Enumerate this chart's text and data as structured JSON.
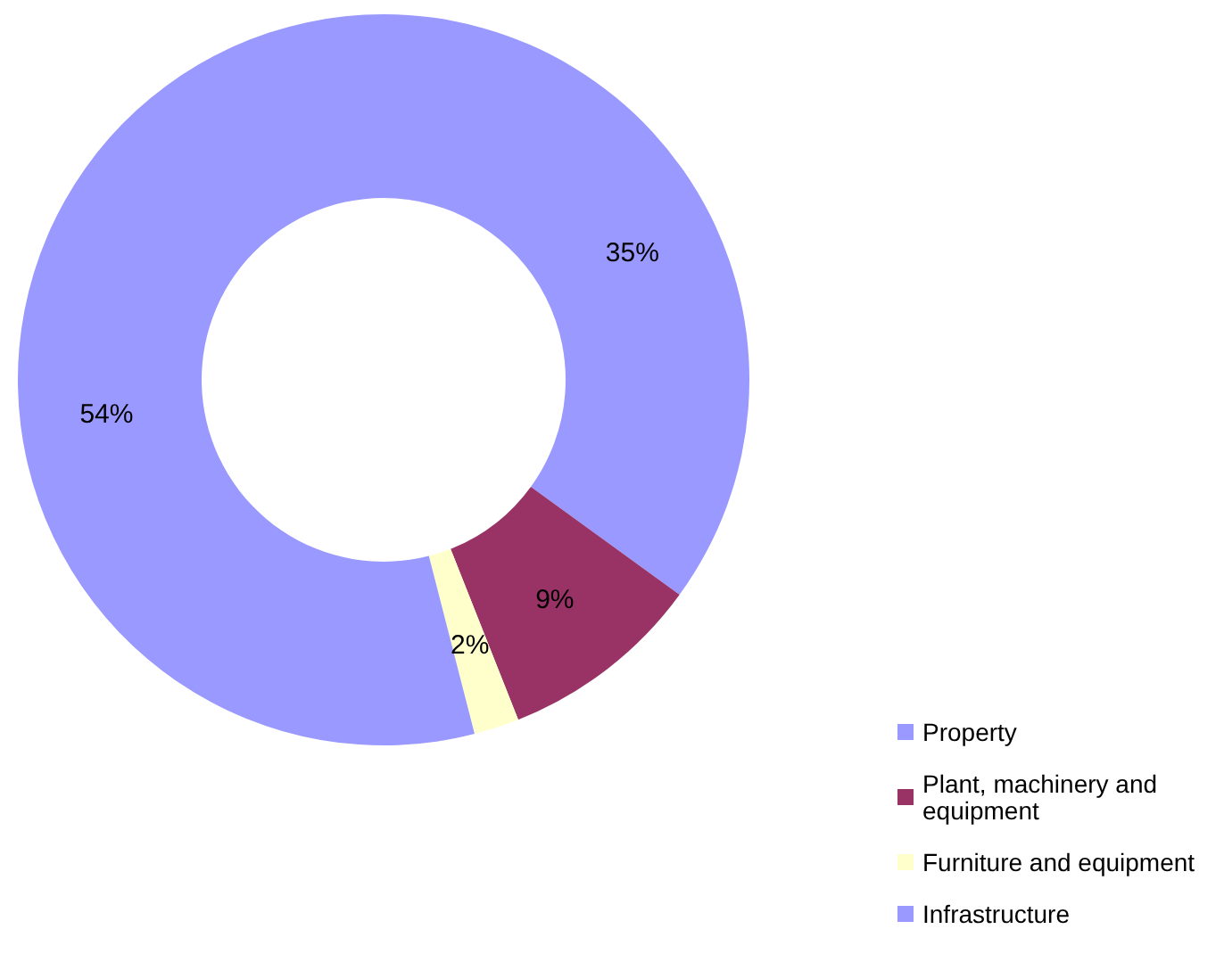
{
  "chart_data": {
    "type": "donut",
    "categories": [
      "Property",
      "Plant, machinery and equipment",
      "Furniture and equipment",
      "Infrastructure"
    ],
    "values": [
      35,
      9,
      2,
      54
    ],
    "colors": [
      "#9999ff",
      "#993366",
      "#ffffcc",
      "#9999ff"
    ],
    "value_labels": [
      "35%",
      "9%",
      "2%",
      "54%"
    ],
    "legend": "bottom right"
  }
}
